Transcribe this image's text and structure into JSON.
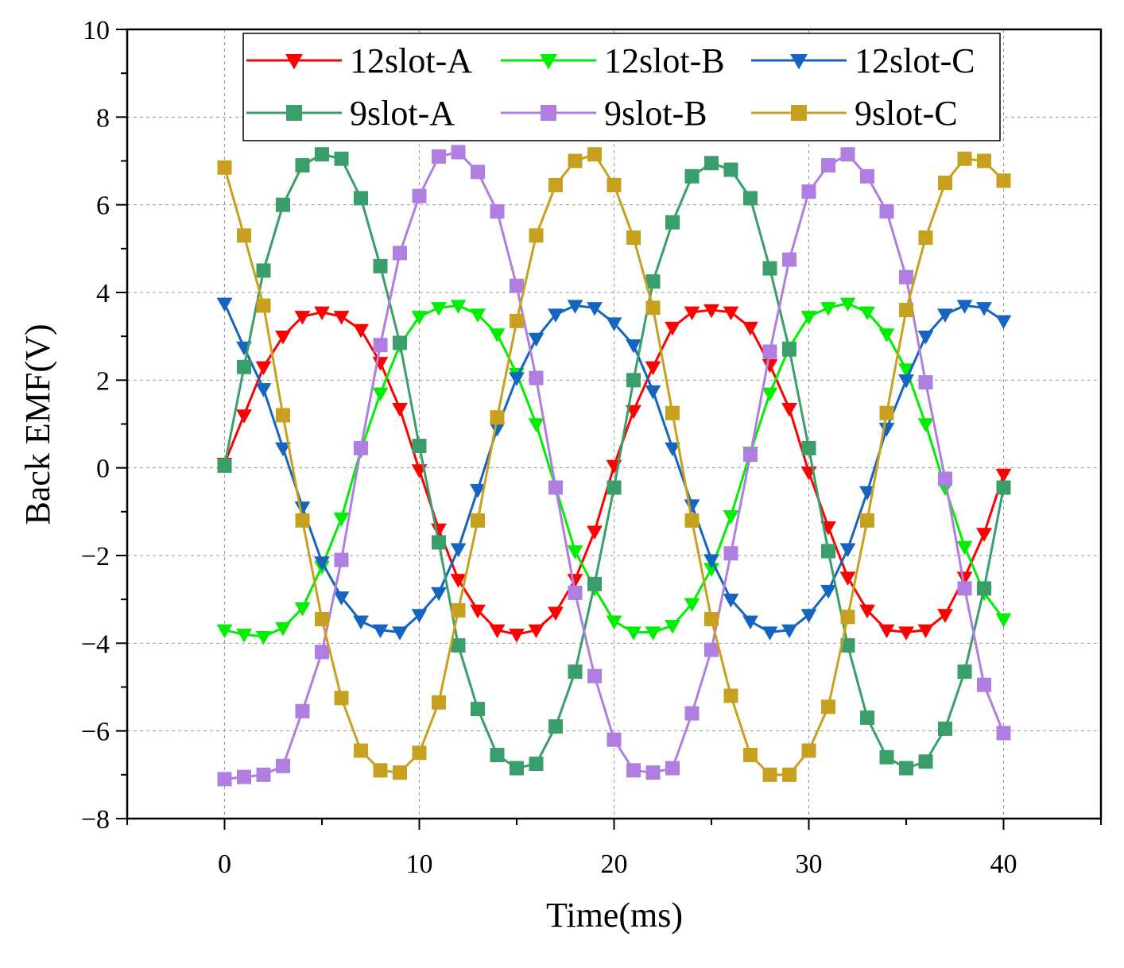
{
  "chart_data": {
    "type": "line",
    "xlabel": "Time(ms)",
    "ylabel": "Back EMF(V)",
    "xlim": [
      -5,
      45
    ],
    "ylim": [
      -8,
      10
    ],
    "xticks": [
      0,
      10,
      20,
      30,
      40
    ],
    "yticks": [
      -8,
      -6,
      -4,
      -2,
      0,
      2,
      4,
      6,
      8,
      10
    ],
    "grid": true,
    "legend_position": "top-center",
    "x": [
      0,
      1,
      2,
      3,
      4,
      5,
      6,
      7,
      8,
      9,
      10,
      11,
      12,
      13,
      14,
      15,
      16,
      17,
      18,
      19,
      20,
      21,
      22,
      23,
      24,
      25,
      26,
      27,
      28,
      29,
      30,
      31,
      32,
      33,
      34,
      35,
      36,
      37,
      38,
      39,
      40
    ],
    "series": [
      {
        "name": "12slot-A",
        "color": "#ff0000",
        "marker": "triangle-down",
        "values": [
          0.1,
          1.2,
          2.3,
          3.0,
          3.45,
          3.55,
          3.45,
          3.15,
          2.4,
          1.35,
          -0.05,
          -1.4,
          -2.55,
          -3.25,
          -3.7,
          -3.8,
          -3.7,
          -3.3,
          -2.55,
          -1.45,
          0.05,
          1.3,
          2.3,
          3.2,
          3.55,
          3.6,
          3.55,
          3.2,
          2.35,
          1.35,
          -0.1,
          -1.35,
          -2.5,
          -3.25,
          -3.7,
          -3.75,
          -3.7,
          -3.35,
          -2.5,
          -1.5,
          -0.15
        ]
      },
      {
        "name": "12slot-B",
        "color": "#00ee00",
        "marker": "triangle-down",
        "values": [
          -3.7,
          -3.8,
          -3.85,
          -3.65,
          -3.2,
          -2.25,
          -1.15,
          0.4,
          1.7,
          2.8,
          3.45,
          3.65,
          3.7,
          3.5,
          3.05,
          2.15,
          1.0,
          -0.45,
          -1.9,
          -2.75,
          -3.5,
          -3.75,
          -3.75,
          -3.6,
          -3.1,
          -2.3,
          -1.1,
          0.35,
          1.7,
          2.75,
          3.45,
          3.65,
          3.75,
          3.55,
          3.05,
          2.25,
          1.0,
          -0.45,
          -1.8,
          -2.85,
          -3.45
        ]
      },
      {
        "name": "12slot-C",
        "color": "#1565c0",
        "marker": "triangle-down",
        "values": [
          3.75,
          2.75,
          1.8,
          0.45,
          -0.9,
          -2.15,
          -2.95,
          -3.5,
          -3.7,
          -3.75,
          -3.35,
          -2.85,
          -1.85,
          -0.5,
          0.9,
          2.05,
          2.95,
          3.5,
          3.7,
          3.65,
          3.3,
          2.8,
          1.75,
          0.45,
          -0.85,
          -2.1,
          -3.0,
          -3.5,
          -3.75,
          -3.7,
          -3.35,
          -2.8,
          -1.85,
          -0.55,
          0.9,
          2.0,
          3.0,
          3.5,
          3.7,
          3.65,
          3.35
        ]
      },
      {
        "name": "9slot-A",
        "color": "#3a9e6a",
        "marker": "square",
        "values": [
          0.05,
          2.3,
          4.5,
          6.0,
          6.9,
          7.15,
          7.05,
          6.15,
          4.6,
          2.85,
          0.5,
          -1.7,
          -4.05,
          -5.5,
          -6.55,
          -6.85,
          -6.75,
          -5.9,
          -4.65,
          -2.65,
          -0.45,
          2.0,
          4.25,
          5.6,
          6.65,
          6.95,
          6.8,
          6.15,
          4.55,
          2.7,
          0.45,
          -1.9,
          -4.05,
          -5.7,
          -6.6,
          -6.85,
          -6.7,
          -5.95,
          -4.65,
          -2.75,
          -0.45
        ]
      },
      {
        "name": "9slot-B",
        "color": "#b07ee0",
        "marker": "square",
        "values": [
          -7.1,
          -7.05,
          -7.0,
          -6.8,
          -5.55,
          -4.2,
          -2.1,
          0.45,
          2.8,
          4.9,
          6.2,
          7.1,
          7.2,
          6.75,
          5.85,
          4.15,
          2.05,
          -0.45,
          -2.85,
          -4.75,
          -6.2,
          -6.9,
          -6.95,
          -6.85,
          -5.6,
          -4.15,
          -1.95,
          0.3,
          2.65,
          4.75,
          6.3,
          6.9,
          7.15,
          6.65,
          5.85,
          4.35,
          1.95,
          -0.25,
          -2.75,
          -4.95,
          -6.05
        ]
      },
      {
        "name": "9slot-C",
        "color": "#c8a020",
        "marker": "square",
        "values": [
          6.85,
          5.3,
          3.7,
          1.2,
          -1.2,
          -3.45,
          -5.25,
          -6.45,
          -6.9,
          -6.95,
          -6.5,
          -5.35,
          -3.25,
          -1.2,
          1.15,
          3.35,
          5.3,
          6.45,
          7.0,
          7.15,
          6.45,
          5.25,
          3.65,
          1.25,
          -1.2,
          -3.45,
          -5.2,
          -6.55,
          -7.0,
          -7.0,
          -6.45,
          -5.45,
          -3.4,
          -1.2,
          1.25,
          3.6,
          5.25,
          6.5,
          7.05,
          7.0,
          6.55
        ]
      }
    ]
  }
}
